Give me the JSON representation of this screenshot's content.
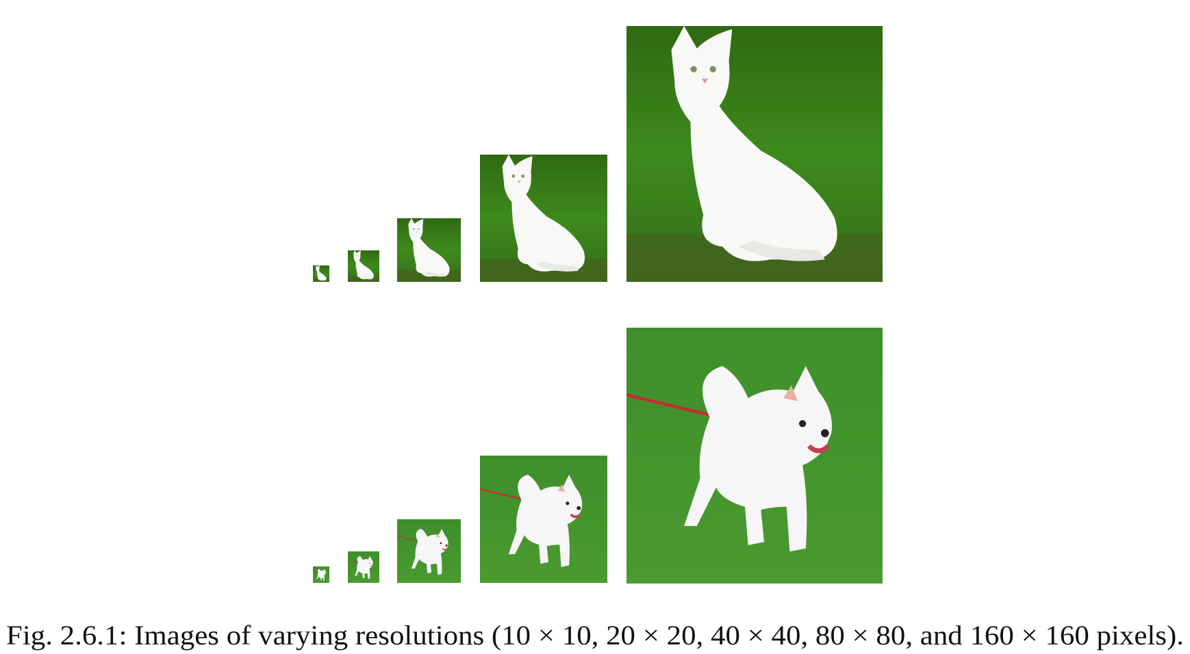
{
  "figure": {
    "caption": "Fig. 2.6.1: Images of varying resolutions (10 × 10, 20 × 20, 40 × 40, 80 × 80, and 160 × 160 pixels)."
  }
}
